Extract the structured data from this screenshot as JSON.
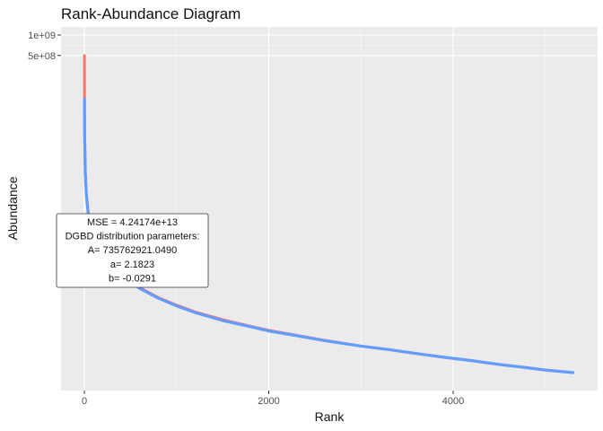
{
  "chart_data": {
    "type": "line",
    "title": "Rank-Abundance Diagram",
    "xlabel": "Rank",
    "ylabel": "Abundance",
    "y_scale": "log",
    "x_ticks": [
      {
        "value": 0,
        "label": "0"
      },
      {
        "value": 2000,
        "label": "2000"
      },
      {
        "value": 4000,
        "label": "4000"
      }
    ],
    "y_ticks": [
      {
        "value": 1000000000,
        "label": "1e+09"
      },
      {
        "value": 500000000,
        "label": "5e+08"
      }
    ],
    "xlim": [
      -250,
      5560
    ],
    "series": [
      {
        "color": "#F8766D",
        "x": [
          1,
          3,
          10,
          20,
          40,
          60,
          100,
          150,
          200,
          300,
          400,
          500,
          600,
          800,
          1000,
          1200,
          1500,
          1800,
          2000,
          2300,
          2600,
          3000,
          3300,
          3600,
          3900,
          4200,
          4500,
          4800,
          5000,
          5300
        ],
        "y": [
          500000000,
          38000000,
          10000000,
          5000000,
          2600000,
          1900000,
          1200000,
          850000,
          640000,
          430000,
          315000,
          245000,
          195000,
          140000,
          108000,
          86000,
          66000,
          53000,
          46000,
          39000,
          33000,
          27000,
          24000,
          21000,
          18500,
          16500,
          14500,
          13000,
          12000,
          11000
        ]
      },
      {
        "color": "#619CFF",
        "x": [
          1,
          3,
          10,
          20,
          40,
          60,
          100,
          150,
          200,
          300,
          400,
          500,
          600,
          800,
          1000,
          1200,
          1500,
          1800,
          2000,
          2300,
          2600,
          3000,
          3300,
          3600,
          3900,
          4200,
          4500,
          4800,
          5000,
          5300
        ],
        "y": [
          115000000,
          35000000,
          9500000,
          4800000,
          2500000,
          1850000,
          1200000,
          850000,
          640000,
          430000,
          315000,
          240000,
          190000,
          137000,
          105000,
          84000,
          64000,
          52000,
          45000,
          38500,
          32500,
          27000,
          24000,
          21000,
          18500,
          16500,
          14500,
          13000,
          12000,
          11000
        ]
      }
    ],
    "annotation": {
      "lines": [
        "MSE = 4.24174e+13",
        "DGBD distribution parameters:",
        "A= 735762921.0490",
        "a= 2.1823",
        "b= -0.0291"
      ]
    },
    "grid": true,
    "legend": "none"
  }
}
